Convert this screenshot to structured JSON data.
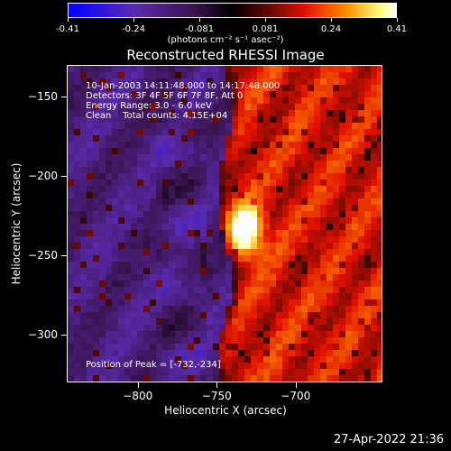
{
  "colorbar": {
    "tick_labels": [
      "-0.41",
      "-0.24",
      "-0.081",
      "0.081",
      "0.24",
      "0.41"
    ],
    "units": "(photons cm⁻² s⁻¹ asec⁻²)",
    "colors": [
      "#0000ff",
      "#5a2bb0",
      "#3a1450",
      "#000000",
      "#6a0a00",
      "#e01000",
      "#ff9000",
      "#ffff80",
      "#ffffff"
    ]
  },
  "title": "Reconstructed RHESSI Image",
  "info": {
    "time_range": "10-Jan-2003 14:11:48.000 to 14:17:48.000",
    "detectors": "Detectors: 3F 4F 5F 6F 7F 8F, Att 0",
    "energy": "Energy Range: 3.0 - 6.0 keV",
    "method": "Clean    Total counts: 4.15E+04",
    "peak": "Position of Peak = [-732,-234]"
  },
  "axes": {
    "xlabel": "Heliocentric X (arcsec)",
    "ylabel": "Heliocentric Y (arcsec)",
    "xticks": [
      "-800",
      "-750",
      "-700"
    ],
    "yticks": [
      "-150",
      "-200",
      "-250",
      "-300"
    ],
    "xlim": [
      -845,
      -645
    ],
    "ylim": [
      -330,
      -130
    ]
  },
  "image": {
    "peak_x": -732,
    "peak_y": -234,
    "colormap": "rainbow"
  },
  "timestamp": "27-Apr-2022 21:36"
}
